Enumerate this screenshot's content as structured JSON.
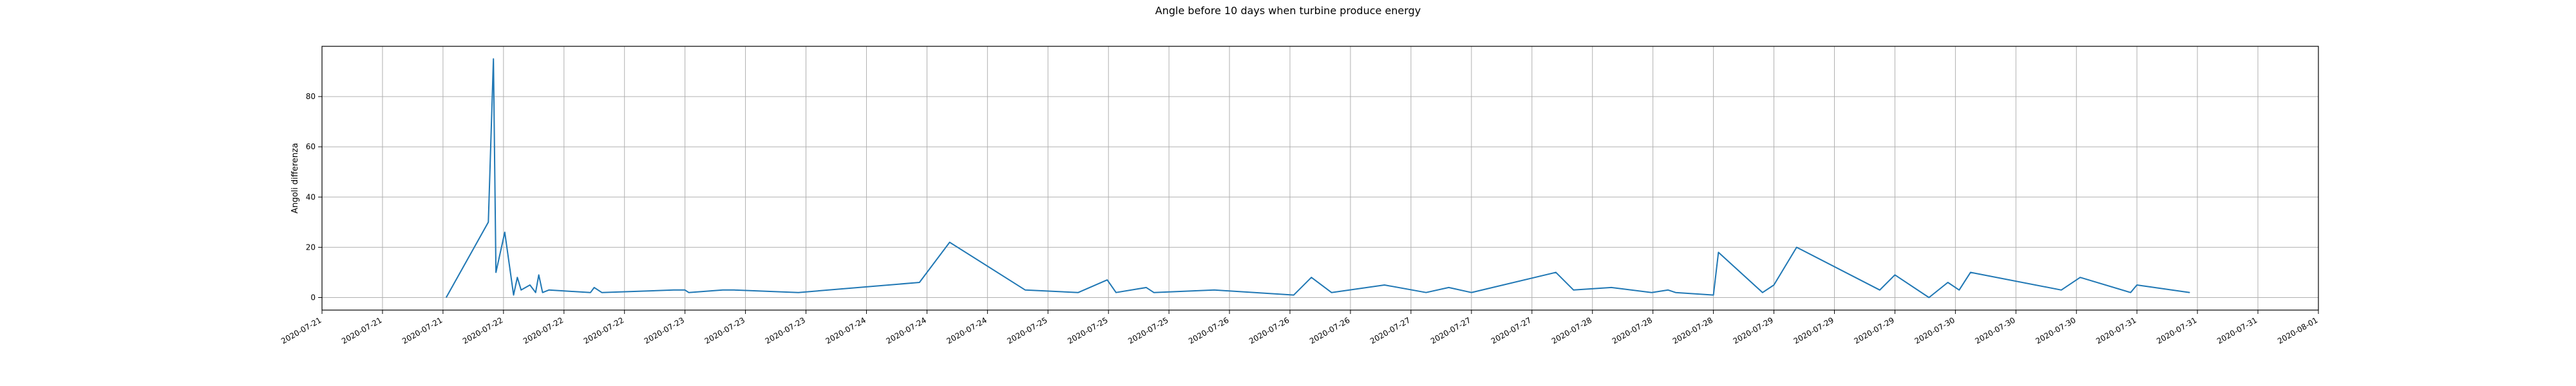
{
  "chart_data": {
    "type": "line",
    "title": "Angle before 10 days when turbine produce energy",
    "xlabel": "",
    "ylabel": "Angoli differenza",
    "grid": true,
    "legend": "none",
    "color": "#1f77b4",
    "xlim": [
      "2020-07-21 00:00",
      "2020-08-01 00:00"
    ],
    "ylim": [
      -5,
      100
    ],
    "x_ticks": [
      "2020-07-21",
      "2020-07-21",
      "2020-07-21",
      "2020-07-22",
      "2020-07-22",
      "2020-07-22",
      "2020-07-23",
      "2020-07-23",
      "2020-07-23",
      "2020-07-24",
      "2020-07-24",
      "2020-07-24",
      "2020-07-25",
      "2020-07-25",
      "2020-07-25",
      "2020-07-26",
      "2020-07-26",
      "2020-07-26",
      "2020-07-27",
      "2020-07-27",
      "2020-07-27",
      "2020-07-28",
      "2020-07-28",
      "2020-07-28",
      "2020-07-29",
      "2020-07-29",
      "2020-07-29",
      "2020-07-30",
      "2020-07-30",
      "2020-07-30",
      "2020-07-31",
      "2020-07-31",
      "2020-07-31",
      "2020-08-01"
    ],
    "y_ticks": [
      "0",
      "20",
      "40",
      "60",
      "80"
    ],
    "x": [
      "2020-07-21 16:25",
      "2020-07-21 22:00",
      "2020-07-21 22:40",
      "2020-07-21 23:00",
      "2020-07-22 00:10",
      "2020-07-22 01:20",
      "2020-07-22 01:50",
      "2020-07-22 02:20",
      "2020-07-22 03:30",
      "2020-07-22 04:15",
      "2020-07-22 04:40",
      "2020-07-22 05:10",
      "2020-07-22 06:00",
      "2020-07-22 11:30",
      "2020-07-22 12:00",
      "2020-07-22 13:00",
      "2020-07-22 22:30",
      "2020-07-23 00:00",
      "2020-07-23 00:30",
      "2020-07-23 05:00",
      "2020-07-23 06:30",
      "2020-07-23 15:00",
      "2020-07-24 07:00",
      "2020-07-24 11:00",
      "2020-07-24 21:00",
      "2020-07-25 04:00",
      "2020-07-25 07:50",
      "2020-07-25 09:00",
      "2020-07-25 13:00",
      "2020-07-25 14:00",
      "2020-07-25 22:00",
      "2020-07-26 08:30",
      "2020-07-26 10:50",
      "2020-07-26 13:30",
      "2020-07-26 20:30",
      "2020-07-27 02:00",
      "2020-07-27 05:00",
      "2020-07-27 08:00",
      "2020-07-27 19:10",
      "2020-07-27 21:30",
      "2020-07-28 02:30",
      "2020-07-28 07:50",
      "2020-07-28 10:00",
      "2020-07-28 11:00",
      "2020-07-28 16:00",
      "2020-07-28 16:40",
      "2020-07-28 22:30",
      "2020-07-29 00:00",
      "2020-07-29 03:00",
      "2020-07-29 14:00",
      "2020-07-29 16:00",
      "2020-07-29 20:30",
      "2020-07-29 23:00",
      "2020-07-30 00:30",
      "2020-07-30 02:00",
      "2020-07-30 14:00",
      "2020-07-30 16:30",
      "2020-07-30 23:10",
      "2020-07-31 00:00",
      "2020-07-31 07:00"
    ],
    "values": [
      0,
      30,
      95,
      10,
      26,
      1,
      8,
      3,
      5,
      2,
      9,
      2,
      3,
      2,
      4,
      2,
      3,
      3,
      2,
      3,
      3,
      2,
      6,
      22,
      3,
      2,
      7,
      2,
      4,
      2,
      3,
      1,
      8,
      2,
      5,
      2,
      4,
      2,
      10,
      3,
      4,
      2,
      3,
      2,
      1,
      18,
      2,
      5,
      20,
      3,
      9,
      0,
      6,
      3,
      10,
      3,
      8,
      2,
      5,
      2
    ]
  }
}
